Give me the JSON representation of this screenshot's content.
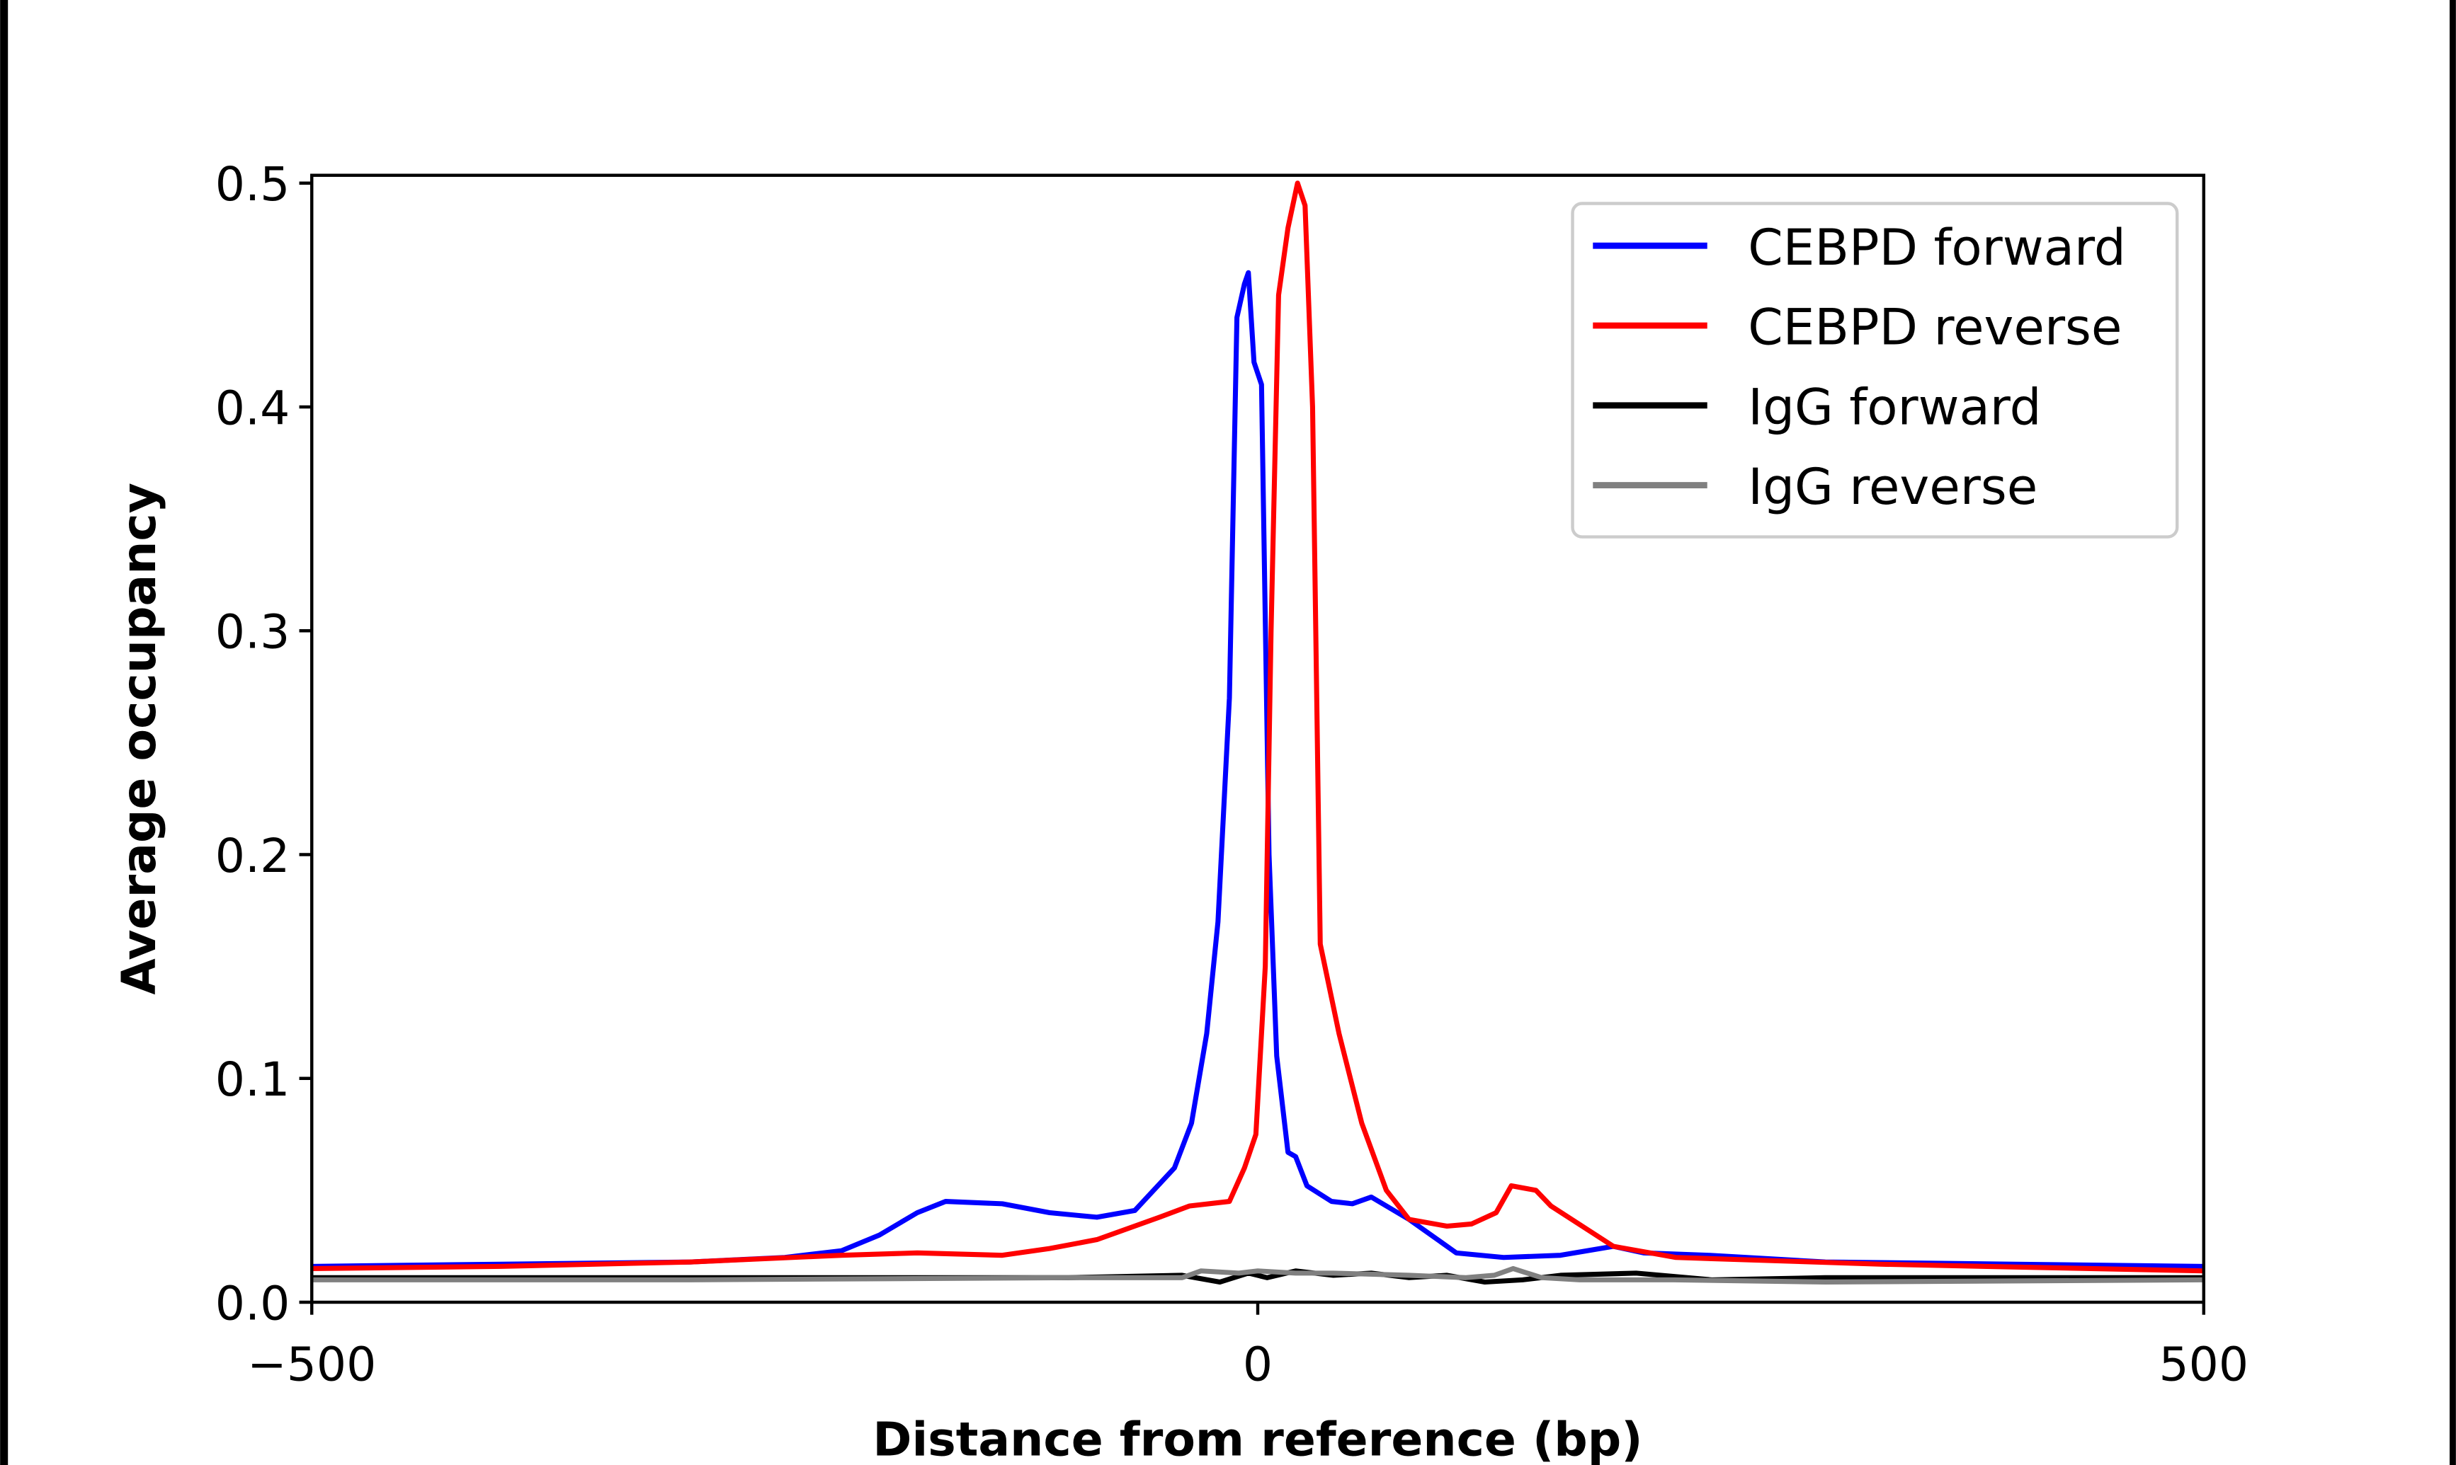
{
  "chart_data": {
    "type": "line",
    "title": "",
    "xlabel": "Distance from reference (bp)",
    "ylabel": "Average occupancy",
    "xlim": [
      -500,
      500
    ],
    "ylim": [
      0,
      0.5
    ],
    "xticks": [
      -500,
      0,
      500
    ],
    "xtick_labels": [
      "−500",
      "0",
      "500"
    ],
    "yticks": [
      0.0,
      0.1,
      0.2,
      0.3,
      0.4,
      0.5
    ],
    "ytick_labels": [
      "0.0",
      "0.1",
      "0.2",
      "0.3",
      "0.4",
      "0.5"
    ],
    "grid": false,
    "legend_position": "top-right",
    "series": [
      {
        "name": "CEBPD forward",
        "color": "#0000ff",
        "x": [
          -500,
          -400,
          -300,
          -250,
          -220,
          -200,
          -180,
          -165,
          -135,
          -110,
          -85,
          -65,
          -44,
          -35,
          -27,
          -21,
          -15,
          -11,
          -7,
          -5,
          -2,
          2,
          6,
          10,
          16,
          20,
          26,
          39,
          50,
          60,
          80,
          105,
          130,
          160,
          188,
          204,
          238,
          300,
          400,
          500
        ],
        "y": [
          0.016,
          0.017,
          0.018,
          0.02,
          0.023,
          0.03,
          0.04,
          0.045,
          0.044,
          0.04,
          0.038,
          0.041,
          0.06,
          0.08,
          0.12,
          0.17,
          0.27,
          0.44,
          0.455,
          0.46,
          0.42,
          0.41,
          0.2,
          0.11,
          0.067,
          0.065,
          0.052,
          0.045,
          0.044,
          0.047,
          0.037,
          0.022,
          0.02,
          0.021,
          0.025,
          0.022,
          0.021,
          0.018,
          0.017,
          0.016
        ]
      },
      {
        "name": "CEBPD reverse",
        "color": "#ff0000",
        "x": [
          -500,
          -400,
          -300,
          -220,
          -180,
          -135,
          -110,
          -85,
          -52,
          -36,
          -15,
          -7,
          -1,
          4,
          7,
          11,
          16,
          21,
          25,
          29,
          33,
          43,
          55,
          68,
          80,
          100,
          113,
          126,
          134,
          147,
          155,
          188,
          221,
          329,
          500
        ],
        "y": [
          0.015,
          0.016,
          0.018,
          0.021,
          0.022,
          0.021,
          0.024,
          0.028,
          0.038,
          0.043,
          0.045,
          0.06,
          0.075,
          0.15,
          0.3,
          0.45,
          0.48,
          0.5,
          0.49,
          0.4,
          0.16,
          0.12,
          0.08,
          0.05,
          0.037,
          0.034,
          0.035,
          0.04,
          0.052,
          0.05,
          0.043,
          0.025,
          0.02,
          0.017,
          0.014
        ]
      },
      {
        "name": "IgG forward",
        "color": "#000000",
        "x": [
          -500,
          -300,
          -100,
          -40,
          -20,
          -5,
          5,
          20,
          40,
          60,
          80,
          100,
          120,
          140,
          160,
          200,
          240,
          300,
          500
        ],
        "y": [
          0.011,
          0.011,
          0.011,
          0.012,
          0.009,
          0.013,
          0.011,
          0.014,
          0.012,
          0.013,
          0.011,
          0.012,
          0.009,
          0.01,
          0.012,
          0.013,
          0.01,
          0.011,
          0.011
        ]
      },
      {
        "name": "IgG reverse",
        "color": "#808080",
        "x": [
          -500,
          -300,
          -100,
          -40,
          -30,
          -10,
          0,
          20,
          40,
          80,
          110,
          125,
          135,
          150,
          170,
          220,
          300,
          500
        ],
        "y": [
          0.01,
          0.01,
          0.011,
          0.011,
          0.014,
          0.013,
          0.014,
          0.013,
          0.013,
          0.012,
          0.011,
          0.012,
          0.015,
          0.011,
          0.01,
          0.01,
          0.009,
          0.01
        ]
      }
    ]
  }
}
